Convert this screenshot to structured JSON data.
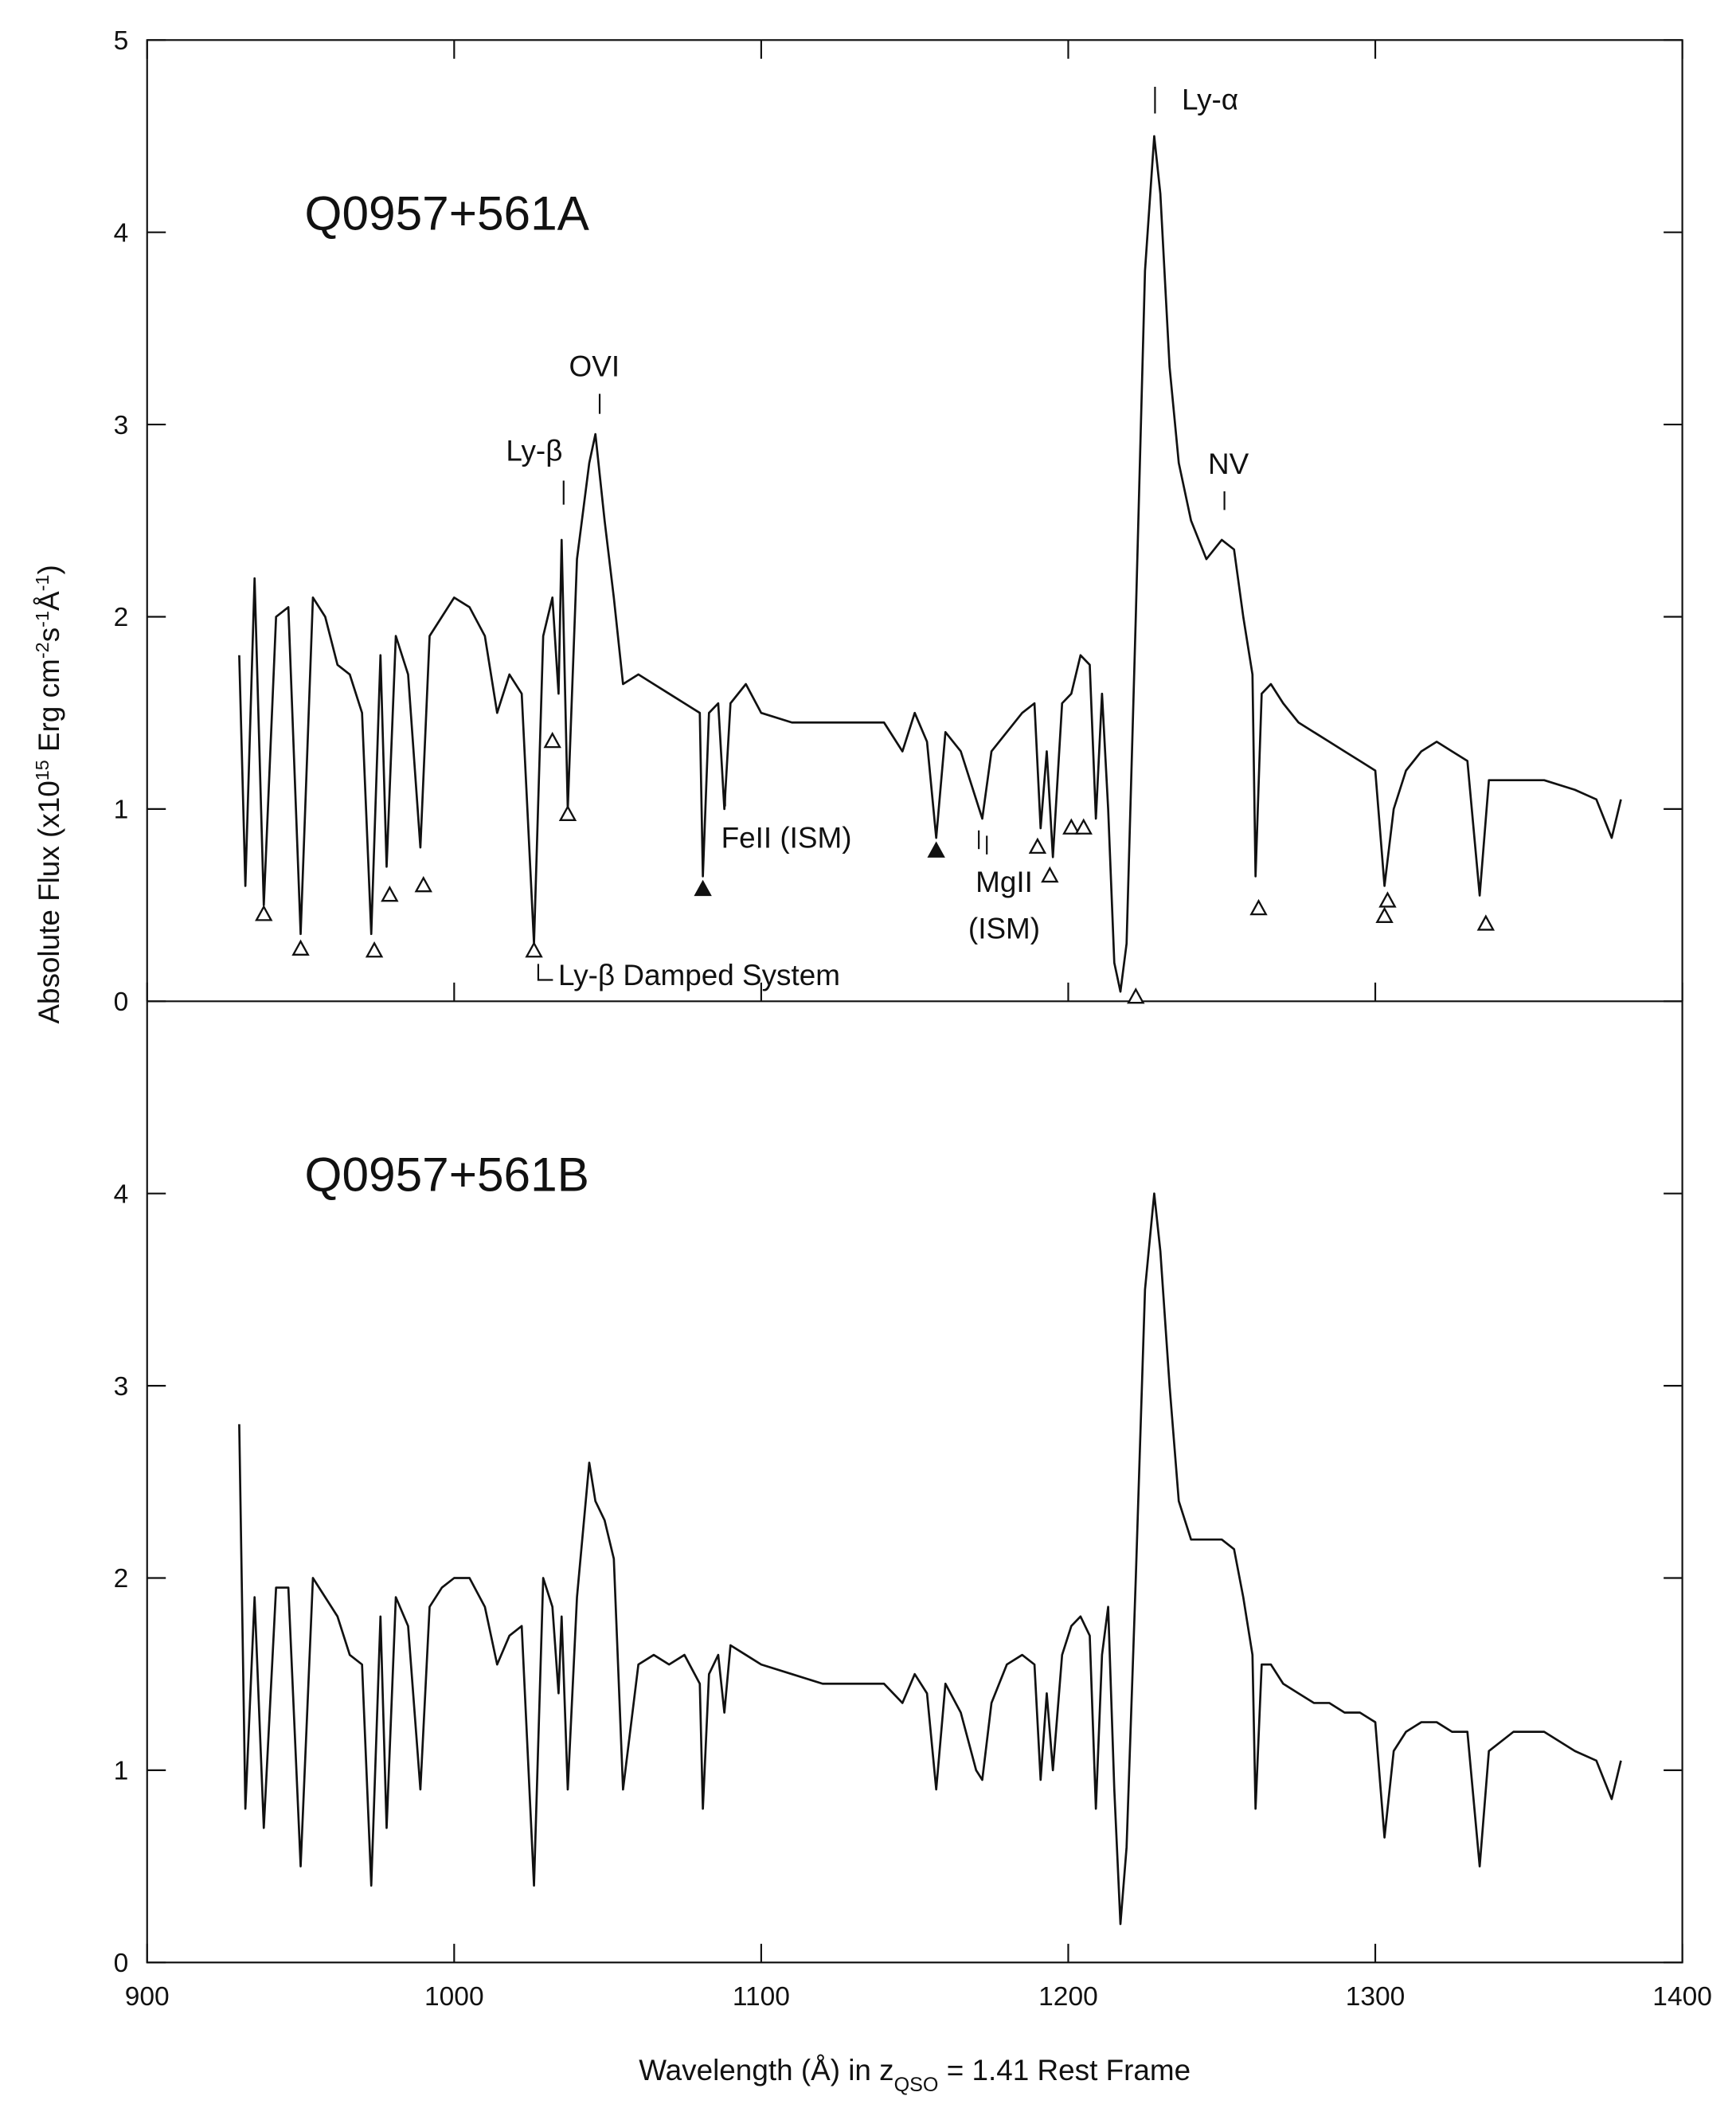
{
  "chart_data": [
    {
      "type": "line",
      "title": "Q0957+561A",
      "color": "#111111",
      "ylabel": [
        {
          "text": "Absolute Flux (x10"
        },
        {
          "text": "15",
          "sup": true
        },
        {
          "text": " Erg cm"
        },
        {
          "text": "-2",
          "sup": true
        },
        {
          "text": "s"
        },
        {
          "text": "-1",
          "sup": true
        },
        {
          "text": "Å"
        },
        {
          "text": "-1",
          "sup": true
        },
        {
          "text": ")"
        }
      ],
      "annotations": [
        "Ly-α",
        "OVI",
        "Ly-β",
        "NV",
        "FeII (ISM)",
        "MgII",
        "(ISM)",
        "Ly-β Damped System"
      ],
      "xlim": [
        900,
        1400
      ],
      "ylim": [
        0,
        5
      ],
      "yticks": [
        0,
        1,
        2,
        3,
        4,
        5
      ],
      "x": [
        930,
        932,
        935,
        938,
        942,
        946,
        950,
        954,
        958,
        962,
        966,
        970,
        973,
        976,
        978,
        981,
        985,
        989,
        992,
        996,
        1000,
        1005,
        1010,
        1014,
        1018,
        1022,
        1026,
        1029,
        1032,
        1034,
        1035,
        1037,
        1040,
        1044,
        1046,
        1049,
        1052,
        1055,
        1060,
        1065,
        1070,
        1075,
        1080,
        1081,
        1083,
        1086,
        1088,
        1090,
        1095,
        1100,
        1110,
        1120,
        1130,
        1140,
        1146,
        1150,
        1154,
        1157,
        1160,
        1165,
        1170,
        1172,
        1175,
        1180,
        1185,
        1189,
        1191,
        1193,
        1195,
        1198,
        1201,
        1204,
        1207,
        1209,
        1211,
        1213,
        1215,
        1217,
        1219,
        1222,
        1225,
        1228,
        1230,
        1233,
        1236,
        1240,
        1245,
        1250,
        1254,
        1257,
        1260,
        1261,
        1263,
        1266,
        1270,
        1275,
        1280,
        1285,
        1290,
        1295,
        1300,
        1303,
        1306,
        1310,
        1315,
        1320,
        1325,
        1330,
        1334,
        1337,
        1345,
        1355,
        1365,
        1372,
        1377,
        1380
      ],
      "values": [
        1.8,
        0.6,
        2.2,
        0.5,
        2.0,
        2.05,
        0.35,
        2.1,
        2.0,
        1.75,
        1.7,
        1.5,
        0.35,
        1.8,
        0.7,
        1.9,
        1.7,
        0.8,
        1.9,
        2.0,
        2.1,
        2.05,
        1.9,
        1.5,
        1.7,
        1.6,
        0.3,
        1.9,
        2.1,
        1.6,
        2.4,
        1.0,
        2.3,
        2.8,
        2.95,
        2.5,
        2.1,
        1.65,
        1.7,
        1.65,
        1.6,
        1.55,
        1.5,
        0.65,
        1.5,
        1.55,
        1.0,
        1.55,
        1.65,
        1.5,
        1.45,
        1.45,
        1.45,
        1.45,
        1.3,
        1.5,
        1.35,
        0.85,
        1.4,
        1.3,
        1.05,
        0.95,
        1.3,
        1.4,
        1.5,
        1.55,
        0.9,
        1.3,
        0.75,
        1.55,
        1.6,
        1.8,
        1.75,
        0.95,
        1.6,
        1.0,
        0.2,
        0.05,
        0.3,
        2.0,
        3.8,
        4.5,
        4.2,
        3.3,
        2.8,
        2.5,
        2.3,
        2.4,
        2.35,
        2.0,
        1.7,
        0.65,
        1.6,
        1.65,
        1.55,
        1.45,
        1.4,
        1.35,
        1.3,
        1.25,
        1.2,
        0.6,
        1.0,
        1.2,
        1.3,
        1.35,
        1.3,
        1.25,
        0.55,
        1.15,
        1.15,
        1.15,
        1.1,
        1.05,
        0.85,
        1.05
      ],
      "markers": {
        "x": [
          938,
          950,
          974,
          979,
          990,
          1026,
          1032,
          1037,
          1081,
          1157,
          1190,
          1194,
          1201,
          1205,
          1222,
          1262,
          1303,
          1304,
          1336
        ],
        "y": [
          0.45,
          0.27,
          0.26,
          0.55,
          0.6,
          0.26,
          1.35,
          0.97,
          0.58,
          0.78,
          0.8,
          0.65,
          0.9,
          0.9,
          0.02,
          0.48,
          0.44,
          0.52,
          0.4
        ],
        "filled": [
          false,
          false,
          false,
          false,
          false,
          false,
          false,
          false,
          true,
          true,
          false,
          false,
          false,
          false,
          false,
          false,
          false,
          false,
          false
        ]
      }
    },
    {
      "type": "line",
      "title": "Q0957+561B",
      "color": "#111111",
      "xlabel": [
        {
          "text": "Wavelength (Å) in z"
        },
        {
          "text": "QSO",
          "sub": true
        },
        {
          "text": " = 1.41 Rest Frame"
        }
      ],
      "xlim": [
        900,
        1400
      ],
      "xticks": [
        900,
        1000,
        1100,
        1200,
        1300,
        1400
      ],
      "ylim": [
        0,
        5
      ],
      "yticks": [
        0,
        1,
        2,
        3,
        4
      ],
      "x": [
        930,
        932,
        935,
        938,
        942,
        946,
        950,
        954,
        958,
        962,
        966,
        970,
        973,
        976,
        978,
        981,
        985,
        989,
        992,
        996,
        1000,
        1005,
        1010,
        1014,
        1018,
        1022,
        1026,
        1029,
        1032,
        1034,
        1035,
        1037,
        1040,
        1044,
        1046,
        1049,
        1052,
        1055,
        1060,
        1065,
        1070,
        1075,
        1080,
        1081,
        1083,
        1086,
        1088,
        1090,
        1095,
        1100,
        1110,
        1120,
        1130,
        1140,
        1146,
        1150,
        1154,
        1157,
        1160,
        1165,
        1170,
        1172,
        1175,
        1180,
        1185,
        1189,
        1191,
        1193,
        1195,
        1198,
        1201,
        1204,
        1207,
        1209,
        1211,
        1213,
        1215,
        1217,
        1219,
        1222,
        1225,
        1228,
        1230,
        1233,
        1236,
        1240,
        1245,
        1250,
        1254,
        1257,
        1260,
        1261,
        1263,
        1266,
        1270,
        1275,
        1280,
        1285,
        1290,
        1295,
        1300,
        1303,
        1306,
        1310,
        1315,
        1320,
        1325,
        1330,
        1334,
        1337,
        1345,
        1355,
        1365,
        1372,
        1377,
        1380
      ],
      "values": [
        2.8,
        0.8,
        1.9,
        0.7,
        1.95,
        1.95,
        0.5,
        2.0,
        1.9,
        1.8,
        1.6,
        1.55,
        0.4,
        1.8,
        0.7,
        1.9,
        1.75,
        0.9,
        1.85,
        1.95,
        2.0,
        2.0,
        1.85,
        1.55,
        1.7,
        1.75,
        0.4,
        2.0,
        1.85,
        1.4,
        1.8,
        0.9,
        1.9,
        2.6,
        2.4,
        2.3,
        2.1,
        0.9,
        1.55,
        1.6,
        1.55,
        1.6,
        1.45,
        0.8,
        1.5,
        1.6,
        1.3,
        1.65,
        1.6,
        1.55,
        1.5,
        1.45,
        1.45,
        1.45,
        1.35,
        1.5,
        1.4,
        0.9,
        1.45,
        1.3,
        1.0,
        0.95,
        1.35,
        1.55,
        1.6,
        1.55,
        0.95,
        1.4,
        1.0,
        1.6,
        1.75,
        1.8,
        1.7,
        0.8,
        1.6,
        1.85,
        0.9,
        0.2,
        0.6,
        2.0,
        3.5,
        4.0,
        3.7,
        3.0,
        2.4,
        2.2,
        2.2,
        2.2,
        2.15,
        1.9,
        1.6,
        0.8,
        1.55,
        1.55,
        1.45,
        1.4,
        1.35,
        1.35,
        1.3,
        1.3,
        1.25,
        0.65,
        1.1,
        1.2,
        1.25,
        1.25,
        1.2,
        1.2,
        0.5,
        1.1,
        1.2,
        1.2,
        1.1,
        1.05,
        0.85,
        1.05
      ]
    }
  ]
}
